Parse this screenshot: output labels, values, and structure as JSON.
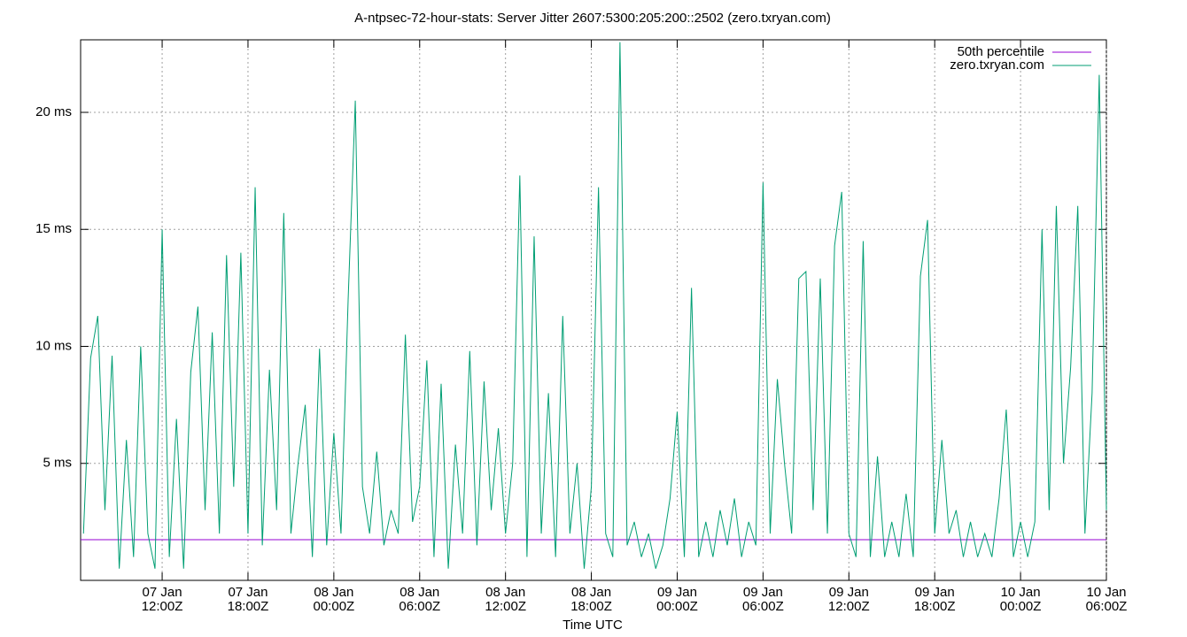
{
  "chart_data": {
    "type": "line",
    "title": "A-ntpsec-72-hour-stats: Server Jitter 2607:5300:205:200::2502 (zero.txryan.com)",
    "x_label": "Time UTC",
    "xlim": [
      6.3,
      78
    ],
    "ylim": [
      0,
      23.1
    ],
    "xticks": [
      {
        "value": 12,
        "label": [
          "07 Jan",
          "12:00Z"
        ]
      },
      {
        "value": 18,
        "label": [
          "07 Jan",
          "18:00Z"
        ]
      },
      {
        "value": 24,
        "label": [
          "08 Jan",
          "00:00Z"
        ]
      },
      {
        "value": 30,
        "label": [
          "08 Jan",
          "06:00Z"
        ]
      },
      {
        "value": 36,
        "label": [
          "08 Jan",
          "12:00Z"
        ]
      },
      {
        "value": 42,
        "label": [
          "08 Jan",
          "18:00Z"
        ]
      },
      {
        "value": 48,
        "label": [
          "09 Jan",
          "00:00Z"
        ]
      },
      {
        "value": 54,
        "label": [
          "09 Jan",
          "06:00Z"
        ]
      },
      {
        "value": 60,
        "label": [
          "09 Jan",
          "12:00Z"
        ]
      },
      {
        "value": 66,
        "label": [
          "09 Jan",
          "18:00Z"
        ]
      },
      {
        "value": 72,
        "label": [
          "10 Jan",
          "00:00Z"
        ]
      },
      {
        "value": 78,
        "label": [
          "10 Jan",
          "06:00Z"
        ]
      }
    ],
    "yticks": [
      {
        "value": 5,
        "label": "5 ms"
      },
      {
        "value": 10,
        "label": "10 ms"
      },
      {
        "value": 15,
        "label": "15 ms"
      },
      {
        "value": 20,
        "label": "20 ms"
      }
    ],
    "grid": true,
    "legend": "top-right",
    "series": [
      {
        "name": "50th percentile",
        "color": "#9400d3",
        "x": [
          6.3,
          78
        ],
        "values": [
          1.74,
          1.74
        ]
      },
      {
        "name": "zero.txryan.com",
        "color": "#009e73",
        "x": [
          6.5,
          7,
          7.5,
          8,
          8.5,
          9,
          9.5,
          10,
          10.5,
          11,
          11.5,
          12,
          12.5,
          13,
          13.5,
          14,
          14.5,
          15,
          15.5,
          16,
          16.5,
          17,
          17.5,
          18,
          18.5,
          19,
          19.5,
          20,
          20.5,
          21,
          21.5,
          22,
          22.5,
          23,
          23.5,
          24,
          24.5,
          25,
          25.5,
          26,
          26.5,
          27,
          27.5,
          28,
          28.5,
          29,
          29.5,
          30,
          30.5,
          31,
          31.5,
          32,
          32.5,
          33,
          33.5,
          34,
          34.5,
          35,
          35.5,
          36,
          36.5,
          37,
          37.5,
          38,
          38.5,
          39,
          39.5,
          40,
          40.5,
          41,
          41.5,
          42,
          42.5,
          43,
          43.5,
          44,
          44.5,
          45,
          45.5,
          46,
          46.5,
          47,
          47.5,
          48,
          48.5,
          49,
          49.5,
          50,
          50.5,
          51,
          51.5,
          52,
          52.5,
          53,
          53.5,
          54,
          54.5,
          55,
          55.5,
          56,
          56.5,
          57,
          57.5,
          58,
          58.5,
          59,
          59.5,
          60,
          60.5,
          61,
          61.5,
          62,
          62.5,
          63,
          63.5,
          64,
          64.5,
          65,
          65.5,
          66,
          66.5,
          67,
          67.5,
          68,
          68.5,
          69,
          69.5,
          70,
          70.5,
          71,
          71.5,
          72,
          72.5,
          73,
          73.5,
          74,
          74.5,
          75,
          75.5,
          76,
          76.5,
          77,
          77.5,
          78
        ],
        "values": [
          2.0,
          9.5,
          11.3,
          3,
          9.6,
          0.5,
          6,
          1,
          10,
          2,
          0.5,
          15,
          1,
          6.9,
          0.5,
          8.9,
          11.7,
          3,
          10.6,
          2,
          13.9,
          4,
          14,
          2,
          16.8,
          1.5,
          9,
          3,
          15.7,
          2,
          5,
          7.5,
          1,
          9.9,
          1.5,
          6.3,
          2,
          12,
          20.5,
          4,
          2,
          5.5,
          1.5,
          3,
          2,
          10.5,
          2.5,
          4,
          9.4,
          1,
          8.4,
          0.5,
          5.8,
          2,
          9.8,
          1.5,
          8.5,
          3,
          6.5,
          2,
          5,
          17.3,
          1,
          14.7,
          2,
          8,
          1,
          11.3,
          2,
          5,
          0.5,
          4,
          16.8,
          2,
          1,
          23,
          1.5,
          2.5,
          1,
          2,
          0.5,
          1.5,
          3.5,
          7.2,
          1,
          12.5,
          1,
          2.5,
          1,
          3,
          1.5,
          3.5,
          1,
          2.5,
          1.5,
          17,
          2,
          8.6,
          5,
          2,
          12.9,
          13.2,
          3,
          12.9,
          2,
          14.3,
          16.6,
          2,
          1,
          14.5,
          1,
          5.3,
          1,
          2.5,
          1,
          3.7,
          1,
          13,
          15.4,
          2,
          6,
          2,
          3,
          1,
          2.5,
          1,
          2,
          1,
          3.5,
          7.3,
          1,
          2.5,
          1,
          2.5,
          15,
          3,
          16,
          5,
          9.1,
          16,
          2,
          8,
          21.6,
          3
        ]
      }
    ]
  }
}
